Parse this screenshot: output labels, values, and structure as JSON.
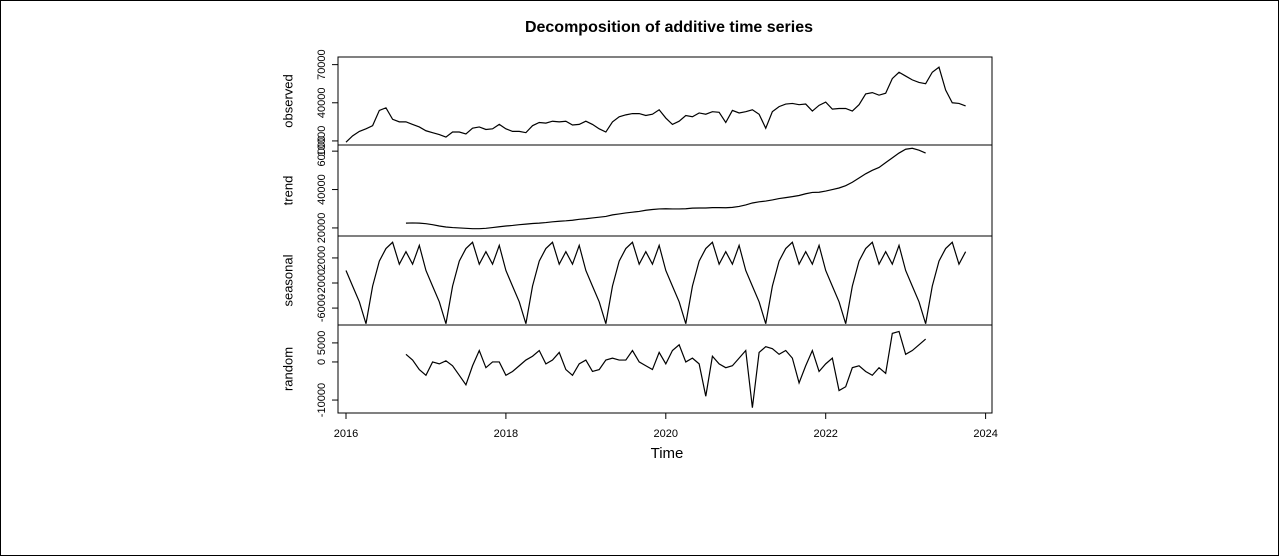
{
  "chart_data": {
    "type": "line",
    "title": "Decomposition of additive time series",
    "x_label": "Time",
    "x": [
      2016,
      2016.083,
      2016.167,
      2016.25,
      2016.333,
      2016.417,
      2016.5,
      2016.583,
      2016.667,
      2016.75,
      2016.833,
      2016.917,
      2017,
      2017.083,
      2017.167,
      2017.25,
      2017.333,
      2017.417,
      2017.5,
      2017.583,
      2017.667,
      2017.75,
      2017.833,
      2017.917,
      2018,
      2018.083,
      2018.167,
      2018.25,
      2018.333,
      2018.417,
      2018.5,
      2018.583,
      2018.667,
      2018.75,
      2018.833,
      2018.917,
      2019,
      2019.083,
      2019.167,
      2019.25,
      2019.333,
      2019.417,
      2019.5,
      2019.583,
      2019.667,
      2019.75,
      2019.833,
      2019.917,
      2020,
      2020.083,
      2020.167,
      2020.25,
      2020.333,
      2020.417,
      2020.5,
      2020.583,
      2020.667,
      2020.75,
      2020.833,
      2020.917,
      2021,
      2021.083,
      2021.167,
      2021.25,
      2021.333,
      2021.417,
      2021.5,
      2021.583,
      2021.667,
      2021.75,
      2021.833,
      2021.917,
      2022,
      2022.083,
      2022.167,
      2022.25,
      2022.333,
      2022.417,
      2022.5,
      2022.583,
      2022.667,
      2022.75,
      2022.833,
      2022.917,
      2023,
      2023.083,
      2023.167,
      2023.25,
      2023.333,
      2023.417,
      2023.5,
      2023.583,
      2023.667,
      2023.75
    ],
    "xlim": [
      2015.9,
      2024.08
    ],
    "xticks": [
      2016,
      2018,
      2020,
      2022,
      2024
    ],
    "series": [
      {
        "name": "observed",
        "color": "#000000",
        "ylim": [
          6800,
          76000
        ],
        "yticks": [
          10000,
          40000,
          70000
        ],
        "values": [
          9000,
          14000,
          17500,
          19500,
          22000,
          34000,
          36000,
          27000,
          25000,
          25000,
          23000,
          21000,
          18000,
          16500,
          15000,
          13000,
          17000,
          17000,
          15500,
          20000,
          21000,
          19000,
          19500,
          23000,
          19500,
          17500,
          17500,
          16500,
          22000,
          24500,
          24000,
          25500,
          25000,
          25500,
          22500,
          23000,
          25500,
          23000,
          19500,
          17000,
          25000,
          29000,
          30500,
          31500,
          31500,
          30000,
          31000,
          34500,
          28000,
          23000,
          25500,
          30000,
          29000,
          32000,
          31000,
          33000,
          32500,
          24500,
          34000,
          32000,
          33000,
          34500,
          31000,
          20000,
          33000,
          37000,
          39000,
          39500,
          38500,
          39000,
          33500,
          38000,
          40500,
          35000,
          35500,
          35500,
          33500,
          38500,
          47000,
          48000,
          46000,
          47500,
          59000,
          64000,
          61000,
          58000,
          56000,
          55000,
          64000,
          68000,
          50000,
          40000,
          39500,
          37500
        ]
      },
      {
        "name": "trend",
        "color": "#000000",
        "ylim": [
          15800,
          63200
        ],
        "yticks": [
          20000,
          40000,
          60000
        ],
        "values": [
          null,
          null,
          null,
          null,
          null,
          null,
          null,
          null,
          null,
          22500,
          22600,
          22500,
          22200,
          21700,
          21000,
          20500,
          20200,
          20000,
          19800,
          19600,
          19600,
          19800,
          20200,
          20600,
          21000,
          21300,
          21700,
          22000,
          22300,
          22500,
          22800,
          23200,
          23500,
          23700,
          24000,
          24500,
          24800,
          25200,
          25600,
          26000,
          26800,
          27300,
          27800,
          28200,
          28600,
          29200,
          29600,
          29900,
          30000,
          29900,
          29900,
          30000,
          30300,
          30400,
          30400,
          30600,
          30600,
          30500,
          30700,
          31200,
          32000,
          33000,
          33600,
          34000,
          34600,
          35300,
          35800,
          36300,
          36900,
          37800,
          38500,
          38600,
          39200,
          40000,
          40800,
          42000,
          43800,
          46000,
          48200,
          50000,
          51500,
          54000,
          56500,
          59000,
          61000,
          61500,
          60500,
          59000,
          null,
          null,
          null,
          null,
          null,
          null
        ]
      },
      {
        "name": "seasonal",
        "color": "#000000",
        "ylim": [
          -8700,
          5500
        ],
        "yticks": [
          -6000,
          -2000,
          2000
        ],
        "values": [
          0,
          -2500,
          -5000,
          -8500,
          -2500,
          1500,
          3500,
          4500,
          1000,
          3000,
          1000,
          4000,
          0,
          -2500,
          -5000,
          -8500,
          -2500,
          1500,
          3500,
          4500,
          1000,
          3000,
          1000,
          4000,
          0,
          -2500,
          -5000,
          -8500,
          -2500,
          1500,
          3500,
          4500,
          1000,
          3000,
          1000,
          4000,
          0,
          -2500,
          -5000,
          -8500,
          -2500,
          1500,
          3500,
          4500,
          1000,
          3000,
          1000,
          4000,
          0,
          -2500,
          -5000,
          -8500,
          -2500,
          1500,
          3500,
          4500,
          1000,
          3000,
          1000,
          4000,
          0,
          -2500,
          -5000,
          -8500,
          -2500,
          1500,
          3500,
          4500,
          1000,
          3000,
          1000,
          4000,
          0,
          -2500,
          -5000,
          -8500,
          -2500,
          1500,
          3500,
          4500,
          1000,
          3000,
          1000,
          4000,
          0,
          -2500,
          -5000,
          -8500,
          -2500,
          1500,
          3500,
          4500,
          1000,
          3000
        ]
      },
      {
        "name": "random",
        "color": "#000000",
        "ylim": [
          -13400,
          9700
        ],
        "yticks": [
          -10000,
          0,
          5000
        ],
        "values": [
          null,
          null,
          null,
          null,
          null,
          null,
          null,
          null,
          null,
          2000,
          500,
          -2000,
          -3500,
          0,
          -500,
          300,
          -1000,
          -3500,
          -6000,
          -1000,
          3000,
          -1500,
          0,
          0,
          -3500,
          -2500,
          -1000,
          500,
          1500,
          3000,
          -500,
          500,
          2500,
          -2000,
          -3500,
          -500,
          500,
          -2500,
          -2000,
          500,
          1000,
          500,
          500,
          3000,
          0,
          -1000,
          -2000,
          2500,
          -500,
          3000,
          4500,
          0,
          1000,
          -500,
          -9000,
          1500,
          -500,
          -1500,
          -1000,
          1000,
          3000,
          -12000,
          2500,
          4000,
          3500,
          2000,
          3000,
          1000,
          -5500,
          -1000,
          3000,
          -2500,
          -500,
          1000,
          -7500,
          -6500,
          -1500,
          -1000,
          -2500,
          -3500,
          -1500,
          -3000,
          7500,
          8000,
          2000,
          3000,
          4500,
          6000,
          null,
          null,
          null,
          null,
          null,
          null
        ]
      }
    ]
  }
}
